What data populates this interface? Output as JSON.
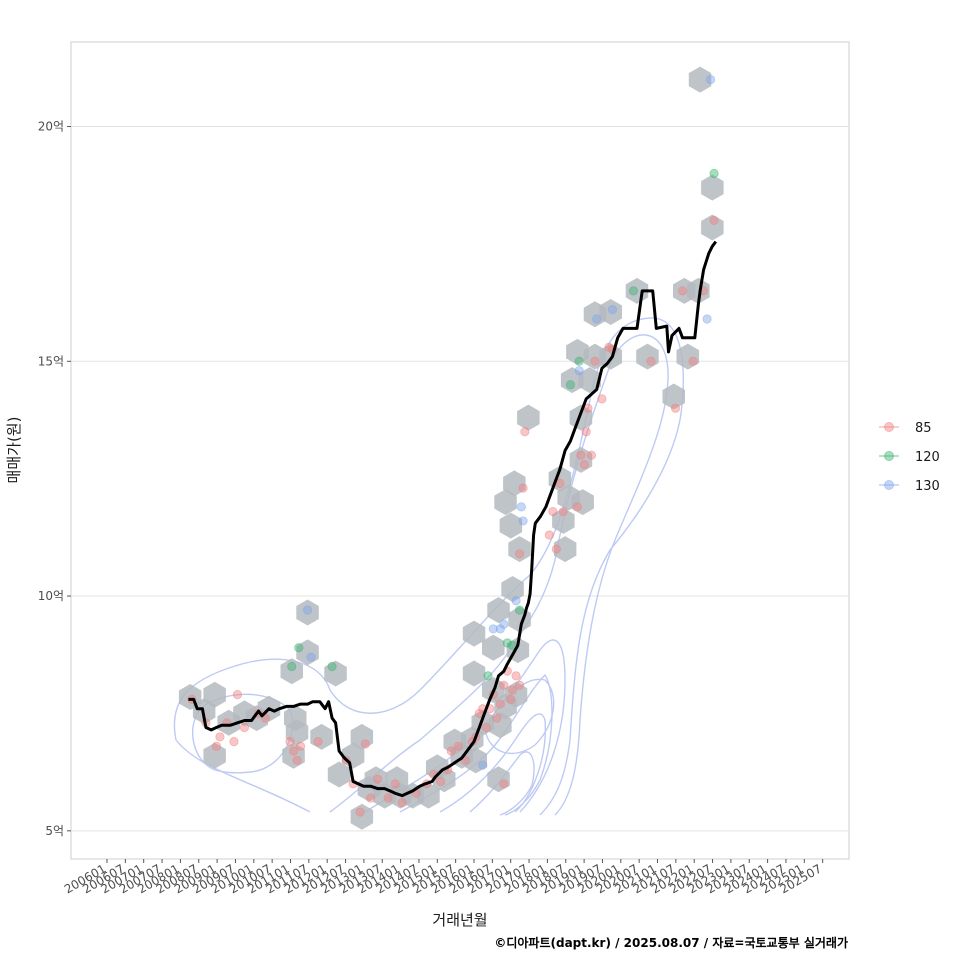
{
  "chart_data": {
    "type": "scatter",
    "xlabel": "거래년월",
    "ylabel": "매매가(원)",
    "caption": "©디아파트(dapt.kr) / 2025.08.07 / 자료=국토교통부 실거래가",
    "x_ticks": [
      "200601",
      "200607",
      "200701",
      "200707",
      "200801",
      "200807",
      "200901",
      "200907",
      "201001",
      "201007",
      "201101",
      "201107",
      "201201",
      "201207",
      "201301",
      "201307",
      "201401",
      "201407",
      "201501",
      "201507",
      "201601",
      "201607",
      "201701",
      "201707",
      "201801",
      "201807",
      "201901",
      "201907",
      "202001",
      "202007",
      "202101",
      "202107",
      "202201",
      "202207",
      "202301",
      "202307",
      "202401",
      "202407",
      "202501",
      "202507"
    ],
    "y_ticks": [
      {
        "value": 5,
        "label": "5억"
      },
      {
        "value": 10,
        "label": "10억"
      },
      {
        "value": 15,
        "label": "15억"
      },
      {
        "value": 20,
        "label": "20억"
      }
    ],
    "ylim": [
      4.4,
      21.8
    ],
    "xlim": [
      2004.15,
      2026.35
    ],
    "grid": true,
    "legend_position": "right",
    "legend": [
      {
        "label": "85",
        "color": "#f08080"
      },
      {
        "label": "120",
        "color": "#3cb371"
      },
      {
        "label": "130",
        "color": "#7ea6ea"
      }
    ],
    "colors": {
      "line": "#000000",
      "hex": "#b4bac0",
      "contour": "#a9b9f0"
    },
    "hexbins": [
      [
        2007.55,
        7.85
      ],
      [
        2007.95,
        7.55
      ],
      [
        2008.25,
        7.9
      ],
      [
        2008.25,
        6.6
      ],
      [
        2008.65,
        7.3
      ],
      [
        2009.1,
        7.5
      ],
      [
        2009.45,
        7.4
      ],
      [
        2009.8,
        7.6
      ],
      [
        2010.45,
        8.4
      ],
      [
        2010.5,
        6.6
      ],
      [
        2010.55,
        7.4
      ],
      [
        2010.9,
        9.65
      ],
      [
        2010.9,
        8.8
      ],
      [
        2010.6,
        7.1
      ],
      [
        2011.3,
        7.0
      ],
      [
        2011.7,
        8.35
      ],
      [
        2011.8,
        6.2
      ],
      [
        2012.2,
        6.6
      ],
      [
        2012.45,
        5.3
      ],
      [
        2012.45,
        7.0
      ],
      [
        2012.65,
        5.9
      ],
      [
        2012.85,
        6.1
      ],
      [
        2013.1,
        5.75
      ],
      [
        2013.45,
        6.1
      ],
      [
        2013.55,
        5.75
      ],
      [
        2013.9,
        5.75
      ],
      [
        2014.35,
        5.75
      ],
      [
        2014.6,
        6.35
      ],
      [
        2014.8,
        6.1
      ],
      [
        2015.1,
        6.9
      ],
      [
        2015.3,
        6.6
      ],
      [
        2015.6,
        6.95
      ],
      [
        2015.65,
        9.2
      ],
      [
        2015.65,
        8.35
      ],
      [
        2015.7,
        6.5
      ],
      [
        2015.9,
        7.3
      ],
      [
        2016.2,
        8.0
      ],
      [
        2016.2,
        8.9
      ],
      [
        2016.35,
        6.1
      ],
      [
        2016.35,
        9.7
      ],
      [
        2016.4,
        7.25
      ],
      [
        2016.55,
        7.65
      ],
      [
        2016.75,
        10.15
      ],
      [
        2016.85,
        7.9
      ],
      [
        2016.9,
        8.85
      ],
      [
        2016.95,
        9.5
      ],
      [
        2016.55,
        12.0
      ],
      [
        2016.7,
        11.5
      ],
      [
        2016.8,
        12.4
      ],
      [
        2016.95,
        11.0
      ],
      [
        2017.2,
        13.8
      ],
      [
        2018.1,
        12.5
      ],
      [
        2018.2,
        11.6
      ],
      [
        2018.25,
        11.0
      ],
      [
        2018.35,
        12.1
      ],
      [
        2018.45,
        14.6
      ],
      [
        2018.6,
        15.2
      ],
      [
        2018.7,
        13.8
      ],
      [
        2018.7,
        12.9
      ],
      [
        2018.75,
        12.0
      ],
      [
        2018.95,
        14.6
      ],
      [
        2019.1,
        15.1
      ],
      [
        2019.1,
        16.0
      ],
      [
        2019.55,
        15.1
      ],
      [
        2019.55,
        16.05
      ],
      [
        2020.3,
        16.5
      ],
      [
        2020.6,
        15.1
      ],
      [
        2021.35,
        14.25
      ],
      [
        2021.65,
        16.5
      ],
      [
        2021.75,
        15.1
      ],
      [
        2022.05,
        16.5
      ],
      [
        2022.1,
        21.0
      ],
      [
        2022.45,
        18.7
      ],
      [
        2022.45,
        17.85
      ]
    ],
    "points": [
      {
        "g": "85",
        "x": 2007.6,
        "y": 7.8
      },
      {
        "g": "85",
        "x": 2008.0,
        "y": 7.3
      },
      {
        "g": "85",
        "x": 2008.3,
        "y": 6.8
      },
      {
        "g": "85",
        "x": 2008.4,
        "y": 7.0
      },
      {
        "g": "85",
        "x": 2008.6,
        "y": 7.3
      },
      {
        "g": "85",
        "x": 2008.8,
        "y": 6.9
      },
      {
        "g": "85",
        "x": 2008.9,
        "y": 7.9
      },
      {
        "g": "85",
        "x": 2009.1,
        "y": 7.2
      },
      {
        "g": "85",
        "x": 2009.5,
        "y": 7.5
      },
      {
        "g": "85",
        "x": 2009.7,
        "y": 7.4
      },
      {
        "g": "85",
        "x": 2010.4,
        "y": 6.9
      },
      {
        "g": "85",
        "x": 2010.5,
        "y": 6.7
      },
      {
        "g": "85",
        "x": 2010.6,
        "y": 6.5
      },
      {
        "g": "85",
        "x": 2010.7,
        "y": 6.8
      },
      {
        "g": "85",
        "x": 2011.2,
        "y": 6.9
      },
      {
        "g": "85",
        "x": 2012.0,
        "y": 6.5
      },
      {
        "g": "85",
        "x": 2012.2,
        "y": 6.0
      },
      {
        "g": "85",
        "x": 2012.4,
        "y": 5.4
      },
      {
        "g": "85",
        "x": 2012.55,
        "y": 6.85
      },
      {
        "g": "85",
        "x": 2012.7,
        "y": 5.7
      },
      {
        "g": "85",
        "x": 2012.9,
        "y": 6.1
      },
      {
        "g": "85",
        "x": 2013.2,
        "y": 5.7
      },
      {
        "g": "85",
        "x": 2013.4,
        "y": 6.0
      },
      {
        "g": "85",
        "x": 2013.6,
        "y": 5.6
      },
      {
        "g": "85",
        "x": 2014.0,
        "y": 5.8
      },
      {
        "g": "85",
        "x": 2014.3,
        "y": 6.0
      },
      {
        "g": "85",
        "x": 2014.5,
        "y": 6.2
      },
      {
        "g": "85",
        "x": 2014.7,
        "y": 6.05
      },
      {
        "g": "85",
        "x": 2014.9,
        "y": 6.3
      },
      {
        "g": "85",
        "x": 2015.0,
        "y": 6.7
      },
      {
        "g": "85",
        "x": 2015.2,
        "y": 6.8
      },
      {
        "g": "85",
        "x": 2015.4,
        "y": 6.5
      },
      {
        "g": "85",
        "x": 2015.6,
        "y": 6.9
      },
      {
        "g": "85",
        "x": 2015.7,
        "y": 7.0
      },
      {
        "g": "85",
        "x": 2015.8,
        "y": 7.5
      },
      {
        "g": "85",
        "x": 2015.9,
        "y": 7.6
      },
      {
        "g": "85",
        "x": 2016.0,
        "y": 7.2
      },
      {
        "g": "85",
        "x": 2016.1,
        "y": 7.6
      },
      {
        "g": "85",
        "x": 2016.2,
        "y": 7.9
      },
      {
        "g": "85",
        "x": 2016.3,
        "y": 7.4
      },
      {
        "g": "85",
        "x": 2016.4,
        "y": 7.7
      },
      {
        "g": "85",
        "x": 2016.5,
        "y": 8.1
      },
      {
        "g": "85",
        "x": 2016.6,
        "y": 8.4
      },
      {
        "g": "85",
        "x": 2016.7,
        "y": 7.8
      },
      {
        "g": "85",
        "x": 2016.75,
        "y": 8.0
      },
      {
        "g": "85",
        "x": 2016.85,
        "y": 8.3
      },
      {
        "g": "85",
        "x": 2016.95,
        "y": 8.1
      },
      {
        "g": "85",
        "x": 2016.5,
        "y": 6.0
      },
      {
        "g": "85",
        "x": 2016.95,
        "y": 10.9
      },
      {
        "g": "85",
        "x": 2017.05,
        "y": 12.3
      },
      {
        "g": "85",
        "x": 2017.1,
        "y": 13.5
      },
      {
        "g": "85",
        "x": 2017.8,
        "y": 11.3
      },
      {
        "g": "85",
        "x": 2017.9,
        "y": 11.8
      },
      {
        "g": "85",
        "x": 2018.0,
        "y": 11.0
      },
      {
        "g": "85",
        "x": 2018.1,
        "y": 12.4
      },
      {
        "g": "85",
        "x": 2018.2,
        "y": 11.8
      },
      {
        "g": "85",
        "x": 2018.6,
        "y": 11.9
      },
      {
        "g": "85",
        "x": 2018.7,
        "y": 13.0
      },
      {
        "g": "85",
        "x": 2018.8,
        "y": 12.8
      },
      {
        "g": "85",
        "x": 2018.85,
        "y": 13.5
      },
      {
        "g": "85",
        "x": 2018.9,
        "y": 14.0
      },
      {
        "g": "85",
        "x": 2019.0,
        "y": 13.0
      },
      {
        "g": "85",
        "x": 2019.1,
        "y": 15.0
      },
      {
        "g": "85",
        "x": 2019.3,
        "y": 14.2
      },
      {
        "g": "85",
        "x": 2019.5,
        "y": 15.3
      },
      {
        "g": "85",
        "x": 2019.6,
        "y": 15.25
      },
      {
        "g": "85",
        "x": 2020.7,
        "y": 15.0
      },
      {
        "g": "85",
        "x": 2021.4,
        "y": 14.0
      },
      {
        "g": "85",
        "x": 2021.6,
        "y": 16.5
      },
      {
        "g": "85",
        "x": 2021.9,
        "y": 15.0
      },
      {
        "g": "85",
        "x": 2022.2,
        "y": 16.5
      },
      {
        "g": "85",
        "x": 2022.5,
        "y": 18.0
      },
      {
        "g": "120",
        "x": 2010.45,
        "y": 8.5
      },
      {
        "g": "120",
        "x": 2010.65,
        "y": 8.9
      },
      {
        "g": "120",
        "x": 2011.6,
        "y": 8.5
      },
      {
        "g": "120",
        "x": 2016.05,
        "y": 8.3
      },
      {
        "g": "120",
        "x": 2016.6,
        "y": 9.0
      },
      {
        "g": "120",
        "x": 2016.75,
        "y": 8.95
      },
      {
        "g": "120",
        "x": 2016.95,
        "y": 9.7
      },
      {
        "g": "120",
        "x": 2018.4,
        "y": 14.5
      },
      {
        "g": "120",
        "x": 2018.65,
        "y": 15.0
      },
      {
        "g": "120",
        "x": 2020.2,
        "y": 16.5
      },
      {
        "g": "120",
        "x": 2022.5,
        "y": 19.0
      },
      {
        "g": "130",
        "x": 2010.9,
        "y": 9.7
      },
      {
        "g": "130",
        "x": 2011.0,
        "y": 8.7
      },
      {
        "g": "130",
        "x": 2015.9,
        "y": 6.4
      },
      {
        "g": "130",
        "x": 2016.2,
        "y": 9.3
      },
      {
        "g": "130",
        "x": 2016.4,
        "y": 9.3
      },
      {
        "g": "130",
        "x": 2016.5,
        "y": 9.4
      },
      {
        "g": "130",
        "x": 2016.85,
        "y": 9.9
      },
      {
        "g": "130",
        "x": 2017.0,
        "y": 11.9
      },
      {
        "g": "130",
        "x": 2017.05,
        "y": 11.6
      },
      {
        "g": "130",
        "x": 2018.65,
        "y": 14.8
      },
      {
        "g": "130",
        "x": 2019.15,
        "y": 15.9
      },
      {
        "g": "130",
        "x": 2019.6,
        "y": 16.1
      },
      {
        "g": "130",
        "x": 2022.3,
        "y": 15.9
      },
      {
        "g": "130",
        "x": 2022.4,
        "y": 21.0
      }
    ],
    "trend_line": [
      [
        2007.5,
        7.8
      ],
      [
        2007.65,
        7.8
      ],
      [
        2007.75,
        7.6
      ],
      [
        2007.9,
        7.6
      ],
      [
        2008.0,
        7.2
      ],
      [
        2008.15,
        7.15
      ],
      [
        2008.3,
        7.2
      ],
      [
        2008.45,
        7.25
      ],
      [
        2008.7,
        7.25
      ],
      [
        2008.9,
        7.3
      ],
      [
        2009.1,
        7.35
      ],
      [
        2009.3,
        7.35
      ],
      [
        2009.5,
        7.55
      ],
      [
        2009.6,
        7.45
      ],
      [
        2009.8,
        7.6
      ],
      [
        2009.95,
        7.55
      ],
      [
        2010.1,
        7.6
      ],
      [
        2010.3,
        7.65
      ],
      [
        2010.5,
        7.65
      ],
      [
        2010.7,
        7.7
      ],
      [
        2010.9,
        7.7
      ],
      [
        2011.05,
        7.75
      ],
      [
        2011.25,
        7.75
      ],
      [
        2011.4,
        7.6
      ],
      [
        2011.5,
        7.75
      ],
      [
        2011.6,
        7.4
      ],
      [
        2011.7,
        7.3
      ],
      [
        2011.8,
        6.7
      ],
      [
        2011.95,
        6.55
      ],
      [
        2012.1,
        6.45
      ],
      [
        2012.2,
        6.05
      ],
      [
        2012.35,
        6.0
      ],
      [
        2012.5,
        5.95
      ],
      [
        2012.7,
        5.95
      ],
      [
        2012.9,
        5.9
      ],
      [
        2013.1,
        5.9
      ],
      [
        2013.25,
        5.85
      ],
      [
        2013.4,
        5.8
      ],
      [
        2013.6,
        5.75
      ],
      [
        2013.75,
        5.8
      ],
      [
        2013.9,
        5.85
      ],
      [
        2014.1,
        5.95
      ],
      [
        2014.25,
        6.0
      ],
      [
        2014.45,
        6.05
      ],
      [
        2014.55,
        6.15
      ],
      [
        2014.75,
        6.3
      ],
      [
        2014.9,
        6.35
      ],
      [
        2015.1,
        6.45
      ],
      [
        2015.3,
        6.55
      ],
      [
        2015.5,
        6.75
      ],
      [
        2015.65,
        6.9
      ],
      [
        2015.8,
        7.2
      ],
      [
        2015.95,
        7.5
      ],
      [
        2016.1,
        7.8
      ],
      [
        2016.25,
        8.05
      ],
      [
        2016.35,
        8.3
      ],
      [
        2016.5,
        8.4
      ],
      [
        2016.6,
        8.55
      ],
      [
        2016.75,
        8.75
      ],
      [
        2016.9,
        8.95
      ],
      [
        2017.0,
        9.4
      ],
      [
        2017.1,
        9.6
      ],
      [
        2017.15,
        9.75
      ],
      [
        2017.2,
        9.85
      ],
      [
        2017.25,
        10.05
      ],
      [
        2017.3,
        10.6
      ],
      [
        2017.35,
        11.3
      ],
      [
        2017.4,
        11.55
      ],
      [
        2017.55,
        11.7
      ],
      [
        2017.7,
        11.9
      ],
      [
        2017.85,
        12.2
      ],
      [
        2017.95,
        12.4
      ],
      [
        2018.1,
        12.7
      ],
      [
        2018.25,
        13.1
      ],
      [
        2018.4,
        13.3
      ],
      [
        2018.55,
        13.6
      ],
      [
        2018.7,
        13.9
      ],
      [
        2018.85,
        14.2
      ],
      [
        2019.0,
        14.3
      ],
      [
        2019.15,
        14.4
      ],
      [
        2019.3,
        14.85
      ],
      [
        2019.45,
        14.95
      ],
      [
        2019.6,
        15.1
      ],
      [
        2019.75,
        15.5
      ],
      [
        2019.9,
        15.7
      ],
      [
        2020.3,
        15.7
      ],
      [
        2020.45,
        16.5
      ],
      [
        2020.75,
        16.5
      ],
      [
        2020.85,
        15.7
      ],
      [
        2021.15,
        15.75
      ],
      [
        2021.2,
        15.2
      ],
      [
        2021.3,
        15.55
      ],
      [
        2021.5,
        15.7
      ],
      [
        2021.6,
        15.5
      ],
      [
        2021.95,
        15.5
      ],
      [
        2022.05,
        16.2
      ],
      [
        2022.1,
        16.5
      ],
      [
        2022.2,
        16.95
      ],
      [
        2022.35,
        17.3
      ],
      [
        2022.45,
        17.45
      ],
      [
        2022.55,
        17.55
      ]
    ]
  }
}
